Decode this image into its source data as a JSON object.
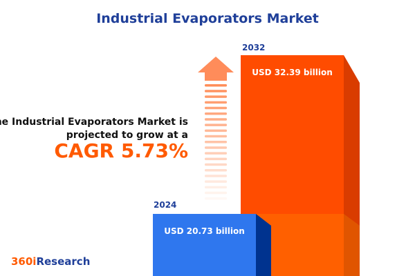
{
  "title": "Industrial Evaporators Market",
  "description": [
    "The Industrial Evaporators Market is",
    "projected to grow at a"
  ],
  "cagr_label": "CAGR 5.73%",
  "logo": {
    "part1": "360i",
    "part2": "Research"
  },
  "colors": {
    "bar_2024": "#2f77ee",
    "bar_2032": "#ff4c00",
    "accent": "#ff5a00",
    "title": "#1f3f99"
  },
  "chart_data": {
    "type": "bar",
    "categories": [
      "2024",
      "2032"
    ],
    "values": [
      20.73,
      32.39
    ],
    "data_labels": [
      "USD 20.73 billion",
      "USD 32.39 billion"
    ],
    "unit": "USD billion",
    "cagr": 5.73
  }
}
